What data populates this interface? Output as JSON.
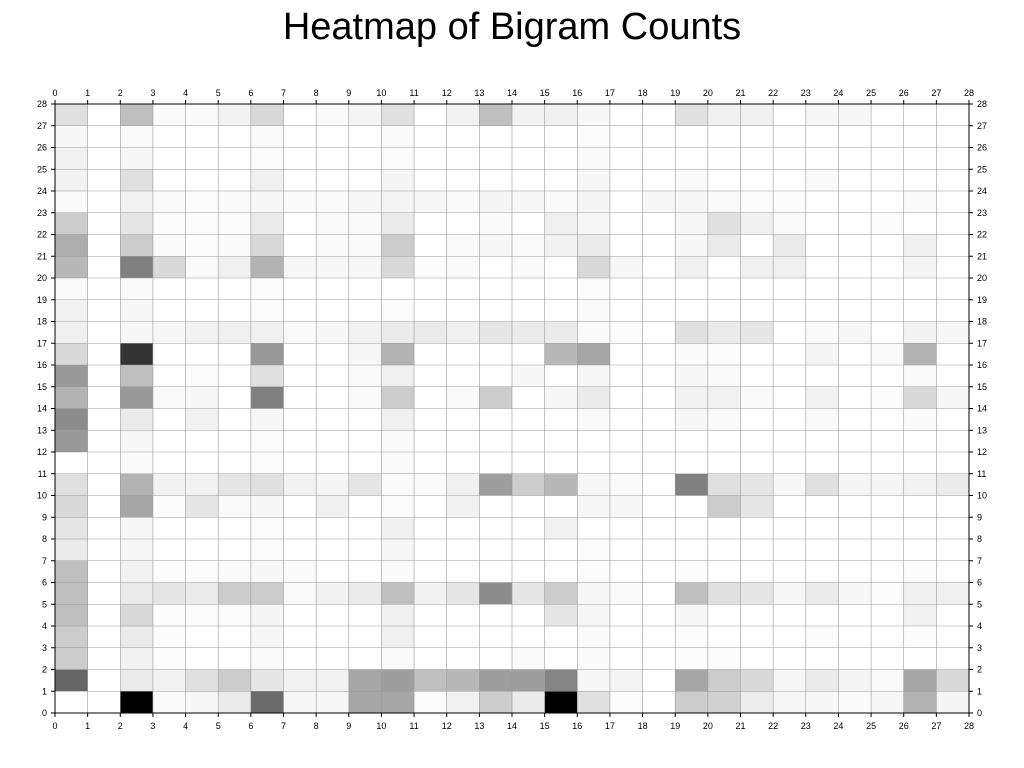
{
  "chart_data": {
    "type": "heatmap",
    "title": "Heatmap of Bigram Counts",
    "xlabel": "",
    "ylabel": "",
    "xlim": [
      0,
      28
    ],
    "ylim": [
      0,
      28
    ],
    "x_ticks": [
      "0",
      "1",
      "2",
      "3",
      "4",
      "5",
      "6",
      "7",
      "8",
      "9",
      "10",
      "11",
      "12",
      "13",
      "14",
      "15",
      "16",
      "17",
      "18",
      "19",
      "20",
      "21",
      "22",
      "23",
      "24",
      "25",
      "26",
      "27",
      "28"
    ],
    "y_ticks": [
      "0",
      "1",
      "2",
      "3",
      "4",
      "5",
      "6",
      "7",
      "8",
      "9",
      "10",
      "11",
      "12",
      "13",
      "14",
      "15",
      "16",
      "17",
      "18",
      "19",
      "20",
      "21",
      "22",
      "23",
      "24",
      "25",
      "26",
      "27",
      "28"
    ],
    "grid": true,
    "colormap": "white-to-black",
    "color_low": "#ffffff",
    "color_high": "#000000",
    "value_range": [
      0,
      1
    ],
    "rows_y_start": 1,
    "values": [
      [
        0.0,
        0.0,
        1.0,
        0.02,
        0.03,
        0.08,
        0.58,
        0.03,
        0.03,
        0.35,
        0.35,
        0.01,
        0.05,
        0.2,
        0.08,
        1.0,
        0.12,
        0.01,
        0.0,
        0.2,
        0.18,
        0.07,
        0.03,
        0.03,
        0.02,
        0.03,
        0.3,
        0.04
      ],
      [
        0.6,
        0.0,
        0.08,
        0.05,
        0.12,
        0.2,
        0.1,
        0.05,
        0.05,
        0.35,
        0.38,
        0.25,
        0.28,
        0.38,
        0.38,
        0.48,
        0.03,
        0.04,
        0.0,
        0.35,
        0.2,
        0.15,
        0.03,
        0.08,
        0.04,
        0.02,
        0.35,
        0.15
      ],
      [
        0.2,
        0.0,
        0.05,
        0.01,
        0.0,
        0.0,
        0.02,
        0.0,
        0.0,
        0.0,
        0.02,
        0.0,
        0.0,
        0.0,
        0.02,
        0.0,
        0.02,
        0.0,
        0.0,
        0.01,
        0.01,
        0.0,
        0.0,
        0.0,
        0.0,
        0.0,
        0.0,
        0.0
      ],
      [
        0.2,
        0.0,
        0.08,
        0.01,
        0.0,
        0.0,
        0.03,
        0.0,
        0.0,
        0.0,
        0.06,
        0.0,
        0.0,
        0.0,
        0.0,
        0.0,
        0.02,
        0.0,
        0.0,
        0.01,
        0.0,
        0.0,
        0.0,
        0.01,
        0.0,
        0.0,
        0.01,
        0.0
      ],
      [
        0.25,
        0.0,
        0.15,
        0.01,
        0.01,
        0.01,
        0.04,
        0.0,
        0.0,
        0.0,
        0.06,
        0.0,
        0.0,
        0.0,
        0.0,
        0.1,
        0.03,
        0.0,
        0.0,
        0.03,
        0.0,
        0.0,
        0.0,
        0.0,
        0.0,
        0.0,
        0.05,
        0.0
      ],
      [
        0.25,
        0.0,
        0.08,
        0.1,
        0.08,
        0.2,
        0.2,
        0.02,
        0.05,
        0.08,
        0.25,
        0.05,
        0.1,
        0.45,
        0.1,
        0.2,
        0.03,
        0.02,
        0.0,
        0.25,
        0.12,
        0.1,
        0.03,
        0.08,
        0.03,
        0.01,
        0.06,
        0.06
      ],
      [
        0.25,
        0.0,
        0.05,
        0.01,
        0.01,
        0.02,
        0.03,
        0.02,
        0.0,
        0.0,
        0.02,
        0.0,
        0.0,
        0.0,
        0.0,
        0.0,
        0.01,
        0.0,
        0.0,
        0.01,
        0.0,
        0.0,
        0.0,
        0.0,
        0.0,
        0.0,
        0.01,
        0.0
      ],
      [
        0.08,
        0.0,
        0.03,
        0.0,
        0.0,
        0.0,
        0.01,
        0.0,
        0.0,
        0.0,
        0.03,
        0.0,
        0.0,
        0.0,
        0.0,
        0.0,
        0.01,
        0.0,
        0.0,
        0.0,
        0.0,
        0.0,
        0.0,
        0.0,
        0.0,
        0.0,
        0.0,
        0.0
      ],
      [
        0.1,
        0.0,
        0.03,
        0.0,
        0.0,
        0.0,
        0.01,
        0.0,
        0.0,
        0.0,
        0.06,
        0.0,
        0.0,
        0.0,
        0.0,
        0.05,
        0.0,
        0.0,
        0.0,
        0.0,
        0.0,
        0.0,
        0.0,
        0.0,
        0.0,
        0.0,
        0.0,
        0.0
      ],
      [
        0.15,
        0.0,
        0.35,
        0.01,
        0.1,
        0.02,
        0.03,
        0.0,
        0.06,
        0.0,
        0.01,
        0.0,
        0.05,
        0.0,
        0.0,
        0.0,
        0.03,
        0.03,
        0.0,
        0.0,
        0.2,
        0.1,
        0.0,
        0.0,
        0.0,
        0.0,
        0.0,
        0.0
      ],
      [
        0.12,
        0.0,
        0.3,
        0.05,
        0.05,
        0.1,
        0.12,
        0.05,
        0.04,
        0.1,
        0.02,
        0.02,
        0.06,
        0.38,
        0.2,
        0.28,
        0.03,
        0.02,
        0.0,
        0.5,
        0.12,
        0.1,
        0.03,
        0.12,
        0.04,
        0.04,
        0.05,
        0.08
      ],
      [
        0.0,
        0.0,
        0.02,
        0.0,
        0.0,
        0.0,
        0.01,
        0.0,
        0.0,
        0.0,
        0.02,
        0.0,
        0.0,
        0.0,
        0.0,
        0.0,
        0.0,
        0.0,
        0.0,
        0.0,
        0.0,
        0.0,
        0.0,
        0.0,
        0.0,
        0.0,
        0.0,
        0.0
      ],
      [
        0.4,
        0.0,
        0.03,
        0.0,
        0.0,
        0.0,
        0.01,
        0.0,
        0.0,
        0.0,
        0.02,
        0.0,
        0.0,
        0.0,
        0.0,
        0.0,
        0.0,
        0.0,
        0.0,
        0.0,
        0.0,
        0.0,
        0.0,
        0.0,
        0.0,
        0.0,
        0.0,
        0.0
      ],
      [
        0.45,
        0.0,
        0.08,
        0.0,
        0.05,
        0.0,
        0.03,
        0.0,
        0.0,
        0.0,
        0.06,
        0.0,
        0.0,
        0.0,
        0.0,
        0.0,
        0.02,
        0.0,
        0.0,
        0.03,
        0.02,
        0.0,
        0.0,
        0.02,
        0.0,
        0.0,
        0.02,
        0.0
      ],
      [
        0.3,
        0.0,
        0.4,
        0.02,
        0.03,
        0.0,
        0.5,
        0.0,
        0.0,
        0.02,
        0.2,
        0.0,
        0.02,
        0.2,
        0.0,
        0.03,
        0.08,
        0.0,
        0.0,
        0.05,
        0.05,
        0.02,
        0.0,
        0.05,
        0.0,
        0.01,
        0.15,
        0.03
      ],
      [
        0.4,
        0.0,
        0.25,
        0.0,
        0.01,
        0.0,
        0.12,
        0.0,
        0.0,
        0.02,
        0.06,
        0.0,
        0.0,
        0.0,
        0.03,
        0.0,
        0.03,
        0.0,
        0.0,
        0.03,
        0.02,
        0.0,
        0.0,
        0.0,
        0.0,
        0.0,
        0.02,
        0.0
      ],
      [
        0.15,
        0.0,
        0.8,
        0.0,
        0.0,
        0.0,
        0.4,
        0.0,
        0.0,
        0.03,
        0.3,
        0.0,
        0.0,
        0.0,
        0.0,
        0.28,
        0.35,
        0.0,
        0.0,
        0.02,
        0.01,
        0.0,
        0.0,
        0.04,
        0.0,
        0.02,
        0.3,
        0.0
      ],
      [
        0.06,
        0.0,
        0.03,
        0.03,
        0.05,
        0.06,
        0.06,
        0.02,
        0.03,
        0.05,
        0.08,
        0.08,
        0.06,
        0.1,
        0.08,
        0.08,
        0.02,
        0.01,
        0.0,
        0.12,
        0.08,
        0.1,
        0.0,
        0.02,
        0.03,
        0.0,
        0.05,
        0.03
      ],
      [
        0.05,
        0.0,
        0.03,
        0.0,
        0.0,
        0.0,
        0.01,
        0.0,
        0.0,
        0.0,
        0.01,
        0.0,
        0.0,
        0.0,
        0.0,
        0.0,
        0.02,
        0.0,
        0.0,
        0.0,
        0.0,
        0.0,
        0.0,
        0.0,
        0.0,
        0.0,
        0.0,
        0.0
      ],
      [
        0.02,
        0.0,
        0.02,
        0.0,
        0.0,
        0.0,
        0.01,
        0.0,
        0.0,
        0.0,
        0.0,
        0.0,
        0.0,
        0.0,
        0.0,
        0.0,
        0.01,
        0.0,
        0.0,
        0.0,
        0.0,
        0.0,
        0.0,
        0.0,
        0.0,
        0.0,
        0.0,
        0.0
      ],
      [
        0.28,
        0.0,
        0.5,
        0.15,
        0.02,
        0.06,
        0.3,
        0.03,
        0.03,
        0.03,
        0.15,
        0.01,
        0.02,
        0.0,
        0.02,
        0.0,
        0.15,
        0.03,
        0.0,
        0.06,
        0.0,
        0.06,
        0.06,
        0.0,
        0.0,
        0.0,
        0.04,
        0.0
      ],
      [
        0.32,
        0.0,
        0.2,
        0.02,
        0.01,
        0.02,
        0.15,
        0.0,
        0.02,
        0.02,
        0.2,
        0.0,
        0.02,
        0.03,
        0.02,
        0.05,
        0.08,
        0.0,
        0.0,
        0.03,
        0.08,
        0.0,
        0.08,
        0.0,
        0.0,
        0.0,
        0.06,
        0.0
      ],
      [
        0.2,
        0.0,
        0.1,
        0.01,
        0.01,
        0.01,
        0.08,
        0.0,
        0.02,
        0.02,
        0.08,
        0.0,
        0.0,
        0.02,
        0.0,
        0.06,
        0.03,
        0.0,
        0.0,
        0.03,
        0.12,
        0.06,
        0.02,
        0.0,
        0.0,
        0.01,
        0.0,
        0.0
      ],
      [
        0.02,
        0.0,
        0.05,
        0.02,
        0.01,
        0.02,
        0.03,
        0.02,
        0.02,
        0.03,
        0.04,
        0.03,
        0.02,
        0.04,
        0.03,
        0.02,
        0.04,
        0.0,
        0.03,
        0.03,
        0.02,
        0.01,
        0.01,
        0.0,
        0.0,
        0.0,
        0.02,
        0.0
      ],
      [
        0.05,
        0.0,
        0.12,
        0.0,
        0.0,
        0.0,
        0.06,
        0.0,
        0.0,
        0.0,
        0.04,
        0.0,
        0.0,
        0.0,
        0.0,
        0.0,
        0.03,
        0.0,
        0.0,
        0.02,
        0.0,
        0.0,
        0.0,
        0.02,
        0.0,
        0.0,
        0.0,
        0.0
      ],
      [
        0.05,
        0.0,
        0.03,
        0.0,
        0.0,
        0.0,
        0.01,
        0.0,
        0.0,
        0.0,
        0.01,
        0.0,
        0.0,
        0.0,
        0.0,
        0.0,
        0.02,
        0.0,
        0.0,
        0.0,
        0.0,
        0.0,
        0.0,
        0.0,
        0.0,
        0.0,
        0.0,
        0.0
      ],
      [
        0.03,
        0.0,
        0.02,
        0.0,
        0.0,
        0.0,
        0.02,
        0.0,
        0.0,
        0.0,
        0.02,
        0.0,
        0.0,
        0.0,
        0.0,
        0.0,
        0.01,
        0.0,
        0.0,
        0.0,
        0.0,
        0.0,
        0.0,
        0.0,
        0.0,
        0.0,
        0.0,
        0.0
      ],
      [
        0.12,
        0.0,
        0.25,
        0.02,
        0.02,
        0.05,
        0.15,
        0.0,
        0.02,
        0.04,
        0.12,
        0.0,
        0.05,
        0.25,
        0.05,
        0.06,
        0.03,
        0.0,
        0.0,
        0.12,
        0.06,
        0.06,
        0.0,
        0.03,
        0.03,
        0.0,
        0.0,
        0.0
      ]
    ]
  }
}
